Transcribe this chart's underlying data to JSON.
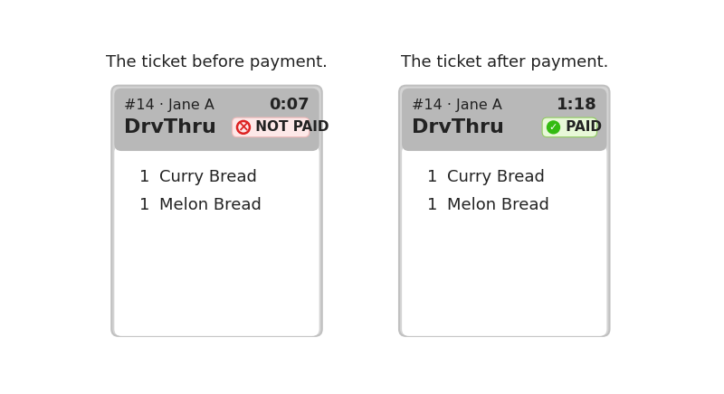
{
  "bg_color": "#ffffff",
  "title_before": "The ticket before payment.",
  "title_after": "The ticket after payment.",
  "title_fontsize": 13,
  "order_num": "#14 · Jane A",
  "time_before": "0:07",
  "time_after": "1:18",
  "service_type": "DrvThru",
  "item1_qty": "1",
  "item1_name": "Curry Bread",
  "item2_qty": "1",
  "item2_name": "Melon Bread",
  "body_bg": "#ffffff",
  "outer_bg": "#d4d4d4",
  "outer_border": "#c0c0c0",
  "header_bg": "#b8b8b8",
  "not_paid_bg": "#fde8e8",
  "not_paid_border": "#f0b8b8",
  "not_paid_icon_color": "#dd2222",
  "not_paid_text_color": "#333333",
  "paid_bg": "#e8f8d8",
  "paid_border": "#90cc60",
  "paid_icon_color": "#33bb11",
  "paid_text_color": "#333333",
  "text_color": "#222222",
  "order_fontsize": 11.5,
  "time_fontsize": 13,
  "service_fontsize": 16,
  "badge_fontsize": 11,
  "item_fontsize": 13
}
